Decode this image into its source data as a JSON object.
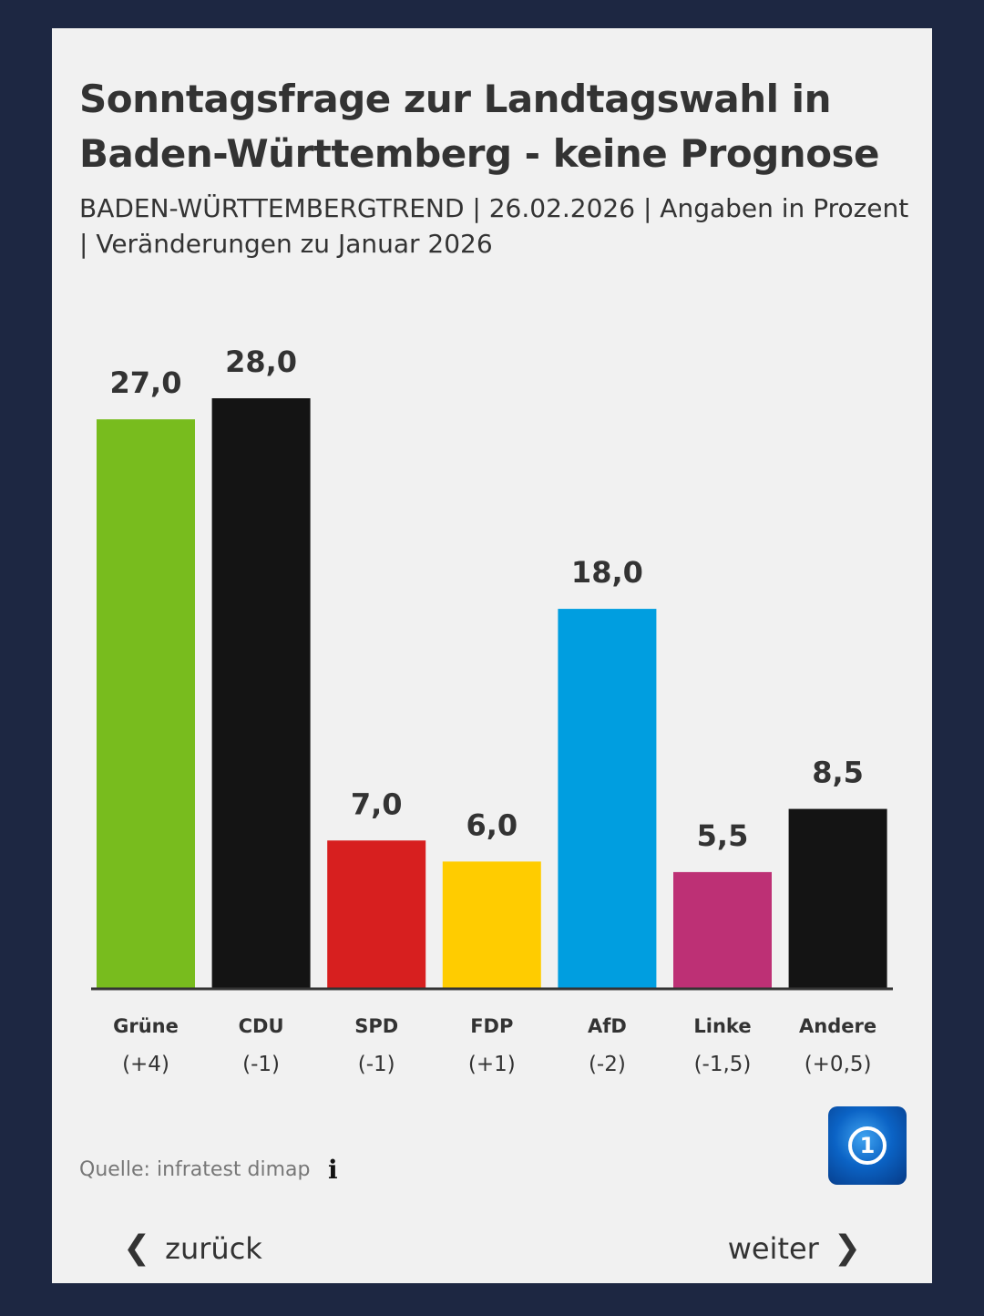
{
  "header": {
    "title": "Sonntagsfrage zur Landtagswahl in Baden-Württemberg - keine Prognose",
    "subtitle": "BADEN-WÜRTTEMBERGTREND | 26.02.2026 | Angaben in Prozent | Veränderungen zu Januar 2026"
  },
  "chart_data": {
    "type": "bar",
    "title": "Sonntagsfrage zur Landtagswahl in Baden-Württemberg - keine Prognose",
    "categories": [
      "Grüne",
      "CDU",
      "SPD",
      "FDP",
      "AfD",
      "Linke",
      "Andere"
    ],
    "values": [
      27.0,
      28.0,
      7.0,
      6.0,
      18.0,
      5.5,
      8.5
    ],
    "value_labels": [
      "27,0",
      "28,0",
      "7,0",
      "6,0",
      "18,0",
      "5,5",
      "8,5"
    ],
    "changes": [
      "(+4)",
      "(-1)",
      "(-1)",
      "(+1)",
      "(-2)",
      "(-1,5)",
      "(+0,5)"
    ],
    "colors": [
      "#78bc1e",
      "#141414",
      "#d71f1f",
      "#ffcc00",
      "#009ee0",
      "#bd3075",
      "#141414"
    ],
    "xlabel": "",
    "ylabel": "",
    "ylim": [
      0,
      28
    ],
    "grid": false,
    "legend": "none"
  },
  "footer": {
    "source": "Quelle: infratest dimap",
    "info_icon": "i",
    "logo_text": "1",
    "prev_label": "zurück",
    "next_label": "weiter"
  }
}
